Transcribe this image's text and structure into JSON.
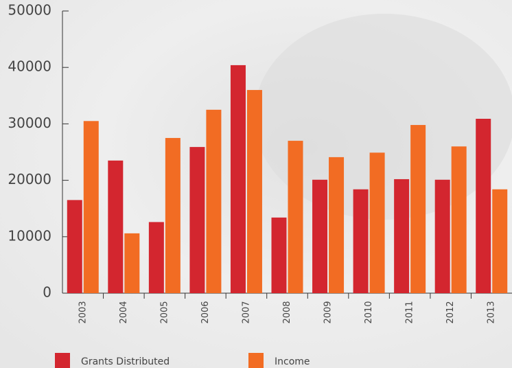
{
  "chart_data": {
    "type": "bar",
    "categories": [
      "2003",
      "2004",
      "2005",
      "2006",
      "2007",
      "2008",
      "2009",
      "2010",
      "2011",
      "2012",
      "2013"
    ],
    "series": [
      {
        "name": "Grants Distributed",
        "color": "#d3262f",
        "values": [
          16500,
          23500,
          12600,
          25900,
          40400,
          13400,
          20100,
          18400,
          20200,
          20100,
          30900
        ]
      },
      {
        "name": "Income",
        "color": "#f26c23",
        "values": [
          30500,
          10600,
          27500,
          32500,
          36000,
          27000,
          24100,
          24900,
          29800,
          26000,
          18400
        ]
      }
    ],
    "ylim": [
      0,
      50000
    ],
    "yticks": [
      0,
      10000,
      20000,
      30000,
      40000,
      50000
    ],
    "legend": "bottom"
  }
}
